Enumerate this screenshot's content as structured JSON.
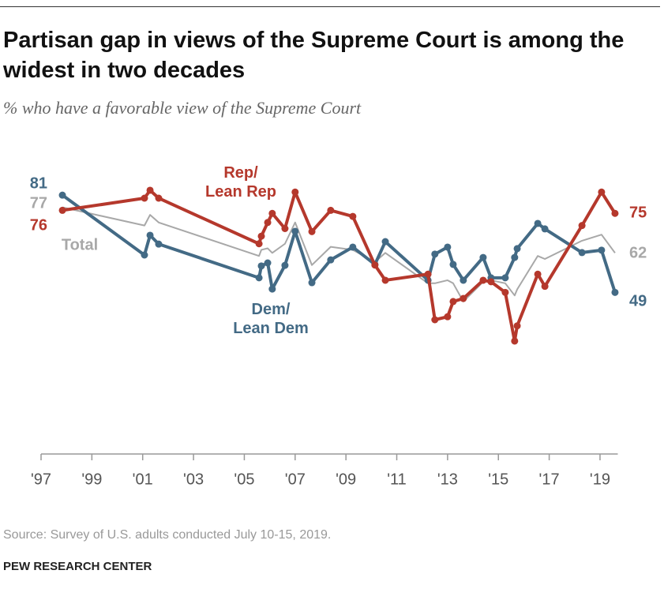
{
  "chart_data": {
    "type": "line",
    "title": "Partisan gap in views of the Supreme Court is among the widest in two decades",
    "subtitle": "% who have a favorable view of the Supreme Court",
    "source": "Source: Survey of U.S. adults conducted July 10-15, 2019.",
    "brand": "PEW RESEARCH CENTER",
    "x": [
      1997.84,
      2001.07,
      2001.29,
      2001.63,
      2005.58,
      2005.67,
      2005.92,
      2006.1,
      2006.6,
      2007.0,
      2007.66,
      2008.4,
      2009.27,
      2010.14,
      2010.55,
      2012.23,
      2012.5,
      2013.0,
      2013.22,
      2013.62,
      2014.4,
      2014.71,
      2015.27,
      2015.64,
      2015.74,
      2016.55,
      2016.83,
      2018.29,
      2019.06,
      2019.59
    ],
    "series": [
      {
        "name": "Rep/ Lean Rep",
        "color": "#b5382c",
        "values": [
          76,
          80,
          82.6,
          80,
          65,
          67.5,
          72,
          75,
          70,
          82,
          69,
          76,
          74,
          58,
          53,
          55,
          40,
          41,
          46,
          47,
          53,
          52.5,
          49,
          33,
          38,
          55,
          51,
          71,
          82,
          75
        ]
      },
      {
        "name": "Dem/ Lean Dem",
        "color": "#436a85",
        "values": [
          81,
          61.3,
          67.8,
          64.9,
          53.8,
          57.7,
          58.7,
          50.1,
          57.9,
          69.1,
          52.2,
          59.7,
          63.9,
          58.2,
          65.7,
          53,
          61.6,
          63.9,
          58.2,
          53,
          60.5,
          53.8,
          53.8,
          60.5,
          63.4,
          71.7,
          69.9,
          62.1,
          62.9,
          49
        ]
      },
      {
        "name": "Total",
        "color": "#a8a8a8",
        "values": [
          77,
          71,
          74.5,
          72,
          61,
          63,
          63.5,
          62,
          65,
          72,
          58,
          64,
          63,
          59,
          62,
          52,
          52,
          53,
          52,
          46,
          52.5,
          53,
          52,
          48,
          50,
          61,
          60,
          66,
          68,
          62
        ]
      }
    ],
    "xlim": [
      1997,
      2019.7
    ],
    "ylim": [
      0,
      100
    ],
    "xticks": [
      {
        "value": 1997,
        "label": "'97"
      },
      {
        "value": 1999,
        "label": "'99"
      },
      {
        "value": 2001,
        "label": "'01"
      },
      {
        "value": 2003,
        "label": "'03"
      },
      {
        "value": 2005,
        "label": "'05"
      },
      {
        "value": 2007,
        "label": "'07"
      },
      {
        "value": 2009,
        "label": "'09"
      },
      {
        "value": 2011,
        "label": "'11"
      },
      {
        "value": 2013,
        "label": "'13"
      },
      {
        "value": 2015,
        "label": "'15"
      },
      {
        "value": 2017,
        "label": "'17"
      },
      {
        "value": 2019,
        "label": "'19"
      }
    ]
  }
}
